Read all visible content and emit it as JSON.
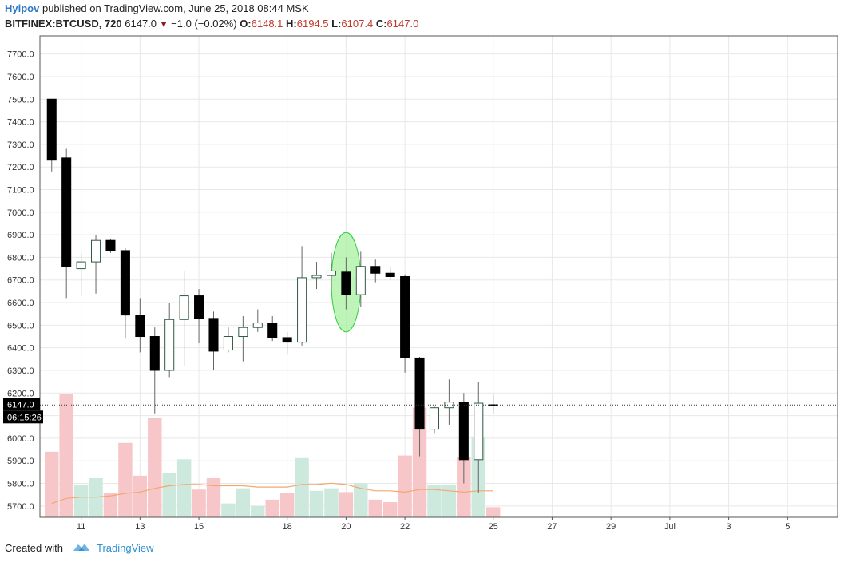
{
  "header": {
    "author": "Hyipov",
    "published_text": "published on TradingView.com, June 25, 2018 08:44 MSK",
    "symbol": "BITFINEX:BTCUSD, 720",
    "last": "6147.0",
    "change_text": "−1.0 (−0.02%)",
    "o_label": "O:",
    "o_value": "6148.1",
    "h_label": "H:",
    "h_value": "6194.5",
    "l_label": "L:",
    "l_value": "6107.4",
    "c_label": "C:",
    "c_value": "6147.0"
  },
  "footer": {
    "created_with": "Created with",
    "brand": "TradingView",
    "logo_icon": "tradingview-cloud-icon"
  },
  "colors": {
    "bear_body": "#000000",
    "bull_body": "#ffffff",
    "candle_border": "#2e5a43",
    "wick": "#666666",
    "vol_up": "#cde8dc",
    "vol_down": "#f7c6c9",
    "ma_line": "#f2a86f",
    "highlight_fill": "#a8f0a0",
    "highlight_stroke": "#2ecc40",
    "grid": "#e8e8e8",
    "price_line": "#333333",
    "price_label_bg": "#000000"
  },
  "chart_data": {
    "type": "candlestick",
    "title": "",
    "ylim": [
      5650,
      7780
    ],
    "y_ticks": [
      5700,
      5800,
      5900,
      6000,
      6100,
      6200,
      6300,
      6400,
      6500,
      6600,
      6700,
      6800,
      6900,
      7000,
      7100,
      7200,
      7300,
      7400,
      7500,
      7600,
      7700
    ],
    "y_tick_labels": [
      "5700.0",
      "5800.0",
      "5900.0",
      "6000.0",
      "6100.0",
      "6200.0",
      "6300.0",
      "6400.0",
      "6500.0",
      "6600.0",
      "6700.0",
      "6800.0",
      "6900.0",
      "7000.0",
      "7100.0",
      "7200.0",
      "7300.0",
      "7400.0",
      "7500.0",
      "7600.0",
      "7700.0"
    ],
    "x_ticks": [
      {
        "label": "11",
        "day": 11
      },
      {
        "label": "13",
        "day": 13
      },
      {
        "label": "15",
        "day": 15
      },
      {
        "label": "18",
        "day": 18
      },
      {
        "label": "20",
        "day": 20
      },
      {
        "label": "22",
        "day": 22
      },
      {
        "label": "25",
        "day": 25
      },
      {
        "label": "27",
        "day": 27
      },
      {
        "label": "29",
        "day": 29
      },
      {
        "label": "Jul",
        "day": 31
      },
      {
        "label": "3",
        "day": 33
      },
      {
        "label": "5",
        "day": 35
      }
    ],
    "x_range_days": [
      9.6,
      36.7
    ],
    "current_price": 6147.0,
    "current_price_label": "6147.0",
    "countdown_label": "06:15:26",
    "candles": [
      {
        "t": 10.0,
        "o": 7500,
        "h": 7500,
        "l": 7180,
        "c": 7230
      },
      {
        "t": 10.5,
        "o": 7240,
        "h": 7280,
        "l": 6620,
        "c": 6760
      },
      {
        "t": 11.0,
        "o": 6750,
        "h": 6820,
        "l": 6630,
        "c": 6780
      },
      {
        "t": 11.5,
        "o": 6780,
        "h": 6900,
        "l": 6640,
        "c": 6875
      },
      {
        "t": 12.0,
        "o": 6875,
        "h": 6880,
        "l": 6820,
        "c": 6830
      },
      {
        "t": 12.5,
        "o": 6830,
        "h": 6840,
        "l": 6440,
        "c": 6545
      },
      {
        "t": 13.0,
        "o": 6545,
        "h": 6620,
        "l": 6380,
        "c": 6450
      },
      {
        "t": 13.5,
        "o": 6450,
        "h": 6490,
        "l": 6110,
        "c": 6300
      },
      {
        "t": 14.0,
        "o": 6300,
        "h": 6600,
        "l": 6270,
        "c": 6525
      },
      {
        "t": 14.5,
        "o": 6525,
        "h": 6740,
        "l": 6320,
        "c": 6630
      },
      {
        "t": 15.0,
        "o": 6630,
        "h": 6660,
        "l": 6420,
        "c": 6530
      },
      {
        "t": 15.5,
        "o": 6530,
        "h": 6560,
        "l": 6300,
        "c": 6385
      },
      {
        "t": 16.0,
        "o": 6390,
        "h": 6490,
        "l": 6380,
        "c": 6450
      },
      {
        "t": 16.5,
        "o": 6450,
        "h": 6540,
        "l": 6340,
        "c": 6490
      },
      {
        "t": 17.0,
        "o": 6490,
        "h": 6570,
        "l": 6470,
        "c": 6510
      },
      {
        "t": 17.5,
        "o": 6510,
        "h": 6540,
        "l": 6430,
        "c": 6445
      },
      {
        "t": 18.0,
        "o": 6445,
        "h": 6470,
        "l": 6370,
        "c": 6425
      },
      {
        "t": 18.5,
        "o": 6425,
        "h": 6850,
        "l": 6410,
        "c": 6710
      },
      {
        "t": 19.0,
        "o": 6710,
        "h": 6780,
        "l": 6660,
        "c": 6720
      },
      {
        "t": 19.5,
        "o": 6720,
        "h": 6820,
        "l": 6660,
        "c": 6740
      },
      {
        "t": 20.0,
        "o": 6735,
        "h": 6800,
        "l": 6570,
        "c": 6635
      },
      {
        "t": 20.5,
        "o": 6635,
        "h": 6825,
        "l": 6580,
        "c": 6760
      },
      {
        "t": 21.0,
        "o": 6760,
        "h": 6790,
        "l": 6690,
        "c": 6730
      },
      {
        "t": 21.5,
        "o": 6730,
        "h": 6760,
        "l": 6700,
        "c": 6715
      },
      {
        "t": 22.0,
        "o": 6715,
        "h": 6725,
        "l": 6290,
        "c": 6355
      },
      {
        "t": 22.5,
        "o": 6355,
        "h": 6360,
        "l": 5920,
        "c": 6040
      },
      {
        "t": 23.0,
        "o": 6040,
        "h": 6140,
        "l": 6020,
        "c": 6135
      },
      {
        "t": 23.5,
        "o": 6135,
        "h": 6260,
        "l": 6060,
        "c": 6160
      },
      {
        "t": 24.0,
        "o": 6160,
        "h": 6200,
        "l": 5800,
        "c": 5905
      },
      {
        "t": 24.5,
        "o": 5905,
        "h": 6250,
        "l": 5760,
        "c": 6155
      },
      {
        "t": 25.0,
        "o": 6148.1,
        "h": 6194.5,
        "l": 6107.4,
        "c": 6147.0
      }
    ],
    "volume": [
      {
        "t": 10.0,
        "v": 0.52,
        "dir": "down"
      },
      {
        "t": 10.5,
        "v": 0.98,
        "dir": "down"
      },
      {
        "t": 11.0,
        "v": 0.26,
        "dir": "up"
      },
      {
        "t": 11.5,
        "v": 0.31,
        "dir": "up"
      },
      {
        "t": 12.0,
        "v": 0.19,
        "dir": "down"
      },
      {
        "t": 12.5,
        "v": 0.59,
        "dir": "down"
      },
      {
        "t": 13.0,
        "v": 0.33,
        "dir": "down"
      },
      {
        "t": 13.5,
        "v": 0.79,
        "dir": "down"
      },
      {
        "t": 14.0,
        "v": 0.35,
        "dir": "up"
      },
      {
        "t": 14.5,
        "v": 0.46,
        "dir": "up"
      },
      {
        "t": 15.0,
        "v": 0.22,
        "dir": "down"
      },
      {
        "t": 15.5,
        "v": 0.31,
        "dir": "down"
      },
      {
        "t": 16.0,
        "v": 0.11,
        "dir": "up"
      },
      {
        "t": 16.5,
        "v": 0.23,
        "dir": "up"
      },
      {
        "t": 17.0,
        "v": 0.09,
        "dir": "up"
      },
      {
        "t": 17.5,
        "v": 0.14,
        "dir": "down"
      },
      {
        "t": 18.0,
        "v": 0.19,
        "dir": "down"
      },
      {
        "t": 18.5,
        "v": 0.47,
        "dir": "up"
      },
      {
        "t": 19.0,
        "v": 0.21,
        "dir": "up"
      },
      {
        "t": 19.5,
        "v": 0.23,
        "dir": "up"
      },
      {
        "t": 20.0,
        "v": 0.2,
        "dir": "down"
      },
      {
        "t": 20.5,
        "v": 0.27,
        "dir": "up"
      },
      {
        "t": 21.0,
        "v": 0.14,
        "dir": "down"
      },
      {
        "t": 21.5,
        "v": 0.12,
        "dir": "down"
      },
      {
        "t": 22.0,
        "v": 0.49,
        "dir": "down"
      },
      {
        "t": 22.5,
        "v": 0.87,
        "dir": "down"
      },
      {
        "t": 23.0,
        "v": 0.26,
        "dir": "up"
      },
      {
        "t": 23.5,
        "v": 0.26,
        "dir": "up"
      },
      {
        "t": 24.0,
        "v": 0.48,
        "dir": "down"
      },
      {
        "t": 24.5,
        "v": 0.64,
        "dir": "up"
      },
      {
        "t": 25.0,
        "v": 0.08,
        "dir": "down"
      }
    ],
    "volume_ma": [
      {
        "t": 10.0,
        "v": 0.11
      },
      {
        "t": 10.5,
        "v": 0.15
      },
      {
        "t": 11.0,
        "v": 0.16
      },
      {
        "t": 11.5,
        "v": 0.16
      },
      {
        "t": 12.0,
        "v": 0.17
      },
      {
        "t": 12.5,
        "v": 0.19
      },
      {
        "t": 13.0,
        "v": 0.2
      },
      {
        "t": 13.5,
        "v": 0.23
      },
      {
        "t": 14.0,
        "v": 0.25
      },
      {
        "t": 14.5,
        "v": 0.26
      },
      {
        "t": 15.0,
        "v": 0.26
      },
      {
        "t": 15.5,
        "v": 0.25
      },
      {
        "t": 16.0,
        "v": 0.25
      },
      {
        "t": 16.5,
        "v": 0.25
      },
      {
        "t": 17.0,
        "v": 0.24
      },
      {
        "t": 17.5,
        "v": 0.24
      },
      {
        "t": 18.0,
        "v": 0.24
      },
      {
        "t": 18.5,
        "v": 0.26
      },
      {
        "t": 19.0,
        "v": 0.26
      },
      {
        "t": 19.5,
        "v": 0.27
      },
      {
        "t": 20.0,
        "v": 0.26
      },
      {
        "t": 20.5,
        "v": 0.23
      },
      {
        "t": 21.0,
        "v": 0.21
      },
      {
        "t": 21.5,
        "v": 0.21
      },
      {
        "t": 22.0,
        "v": 0.2
      },
      {
        "t": 22.5,
        "v": 0.22
      },
      {
        "t": 23.0,
        "v": 0.22
      },
      {
        "t": 23.5,
        "v": 0.21
      },
      {
        "t": 24.0,
        "v": 0.2
      },
      {
        "t": 24.5,
        "v": 0.21
      },
      {
        "t": 25.0,
        "v": 0.21
      }
    ],
    "highlight_ellipse": {
      "t_center": 20.0,
      "price_center": 6690,
      "t_radius": 0.5,
      "price_radius": 220
    }
  }
}
